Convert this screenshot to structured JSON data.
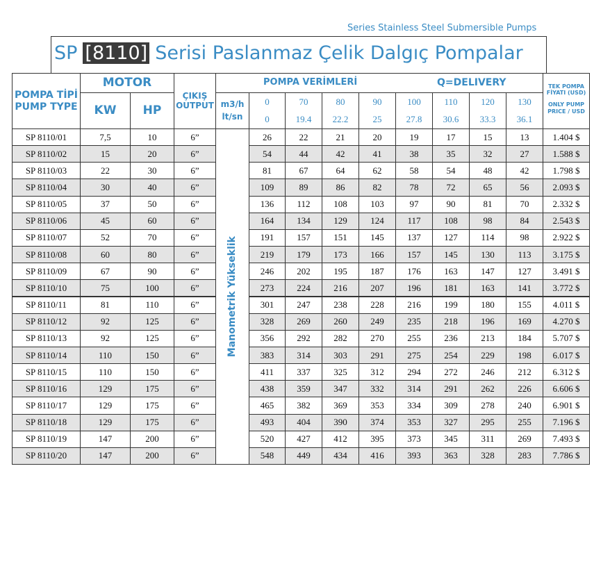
{
  "header": {
    "subtitle": "Series Stainless Steel Submersible Pumps",
    "title_prefix": "SP",
    "title_code": "[8110]",
    "title_text": "Serisi Paslanmaz Çelik Dalgıç Pompalar"
  },
  "table": {
    "pump_type": [
      "POMPA TİPİ",
      "PUMP TYPE"
    ],
    "motor": "MOTOR",
    "kw": "KW",
    "hp": "HP",
    "output": [
      "ÇIKIŞ",
      "OUTPUT"
    ],
    "performance": "POMPA VERİMLERİ",
    "delivery": "Q=DELIVERY",
    "units": [
      "m3/h",
      "lt/sn"
    ],
    "flow_m3h": [
      "0",
      "70",
      "80",
      "90",
      "100",
      "110",
      "120",
      "130"
    ],
    "flow_lts": [
      "0",
      "19.4",
      "22.2",
      "25",
      "27.8",
      "30.6",
      "33.3",
      "36.1"
    ],
    "price": [
      "TEK POMPA",
      "FİYATI (USD)",
      "ONLY PUMP",
      "PRICE / USD"
    ],
    "head_label": "Manometrik Yükseklik",
    "rows": [
      [
        "SP 8110/01",
        "7,5",
        "10",
        "6”",
        "26",
        "22",
        "21",
        "20",
        "19",
        "17",
        "15",
        "13",
        "1.404 $"
      ],
      [
        "SP 8110/02",
        "15",
        "20",
        "6”",
        "54",
        "44",
        "42",
        "41",
        "38",
        "35",
        "32",
        "27",
        "1.588 $"
      ],
      [
        "SP 8110/03",
        "22",
        "30",
        "6”",
        "81",
        "67",
        "64",
        "62",
        "58",
        "54",
        "48",
        "42",
        "1.798 $"
      ],
      [
        "SP 8110/04",
        "30",
        "40",
        "6”",
        "109",
        "89",
        "86",
        "82",
        "78",
        "72",
        "65",
        "56",
        "2.093 $"
      ],
      [
        "SP 8110/05",
        "37",
        "50",
        "6”",
        "136",
        "112",
        "108",
        "103",
        "97",
        "90",
        "81",
        "70",
        "2.332 $"
      ],
      [
        "SP 8110/06",
        "45",
        "60",
        "6”",
        "164",
        "134",
        "129",
        "124",
        "117",
        "108",
        "98",
        "84",
        "2.543 $"
      ],
      [
        "SP 8110/07",
        "52",
        "70",
        "6”",
        "191",
        "157",
        "151",
        "145",
        "137",
        "127",
        "114",
        "98",
        "2.922 $"
      ],
      [
        "SP 8110/08",
        "60",
        "80",
        "6”",
        "219",
        "179",
        "173",
        "166",
        "157",
        "145",
        "130",
        "113",
        "3.175 $"
      ],
      [
        "SP 8110/09",
        "67",
        "90",
        "6”",
        "246",
        "202",
        "195",
        "187",
        "176",
        "163",
        "147",
        "127",
        "3.491 $"
      ],
      [
        "SP 8110/10",
        "75",
        "100",
        "6”",
        "273",
        "224",
        "216",
        "207",
        "196",
        "181",
        "163",
        "141",
        "3.772 $"
      ],
      [
        "SP 8110/11",
        "81",
        "110",
        "6”",
        "301",
        "247",
        "238",
        "228",
        "216",
        "199",
        "180",
        "155",
        "4.011 $"
      ],
      [
        "SP 8110/12",
        "92",
        "125",
        "6”",
        "328",
        "269",
        "260",
        "249",
        "235",
        "218",
        "196",
        "169",
        "4.270 $"
      ],
      [
        "SP 8110/13",
        "92",
        "125",
        "6”",
        "356",
        "292",
        "282",
        "270",
        "255",
        "236",
        "213",
        "184",
        "5.707 $"
      ],
      [
        "SP 8110/14",
        "110",
        "150",
        "6”",
        "383",
        "314",
        "303",
        "291",
        "275",
        "254",
        "229",
        "198",
        "6.017 $"
      ],
      [
        "SP 8110/15",
        "110",
        "150",
        "6”",
        "411",
        "337",
        "325",
        "312",
        "294",
        "272",
        "246",
        "212",
        "6.312 $"
      ],
      [
        "SP 8110/16",
        "129",
        "175",
        "6”",
        "438",
        "359",
        "347",
        "332",
        "314",
        "291",
        "262",
        "226",
        "6.606 $"
      ],
      [
        "SP 8110/17",
        "129",
        "175",
        "6”",
        "465",
        "382",
        "369",
        "353",
        "334",
        "309",
        "278",
        "240",
        "6.901 $"
      ],
      [
        "SP 8110/18",
        "129",
        "175",
        "6”",
        "493",
        "404",
        "390",
        "374",
        "353",
        "327",
        "295",
        "255",
        "7.196 $"
      ],
      [
        "SP 8110/19",
        "147",
        "200",
        "6”",
        "520",
        "427",
        "412",
        "395",
        "373",
        "345",
        "311",
        "269",
        "7.493 $"
      ],
      [
        "SP 8110/20",
        "147",
        "200",
        "6”",
        "548",
        "449",
        "434",
        "416",
        "393",
        "363",
        "328",
        "283",
        "7.786 $"
      ]
    ]
  }
}
